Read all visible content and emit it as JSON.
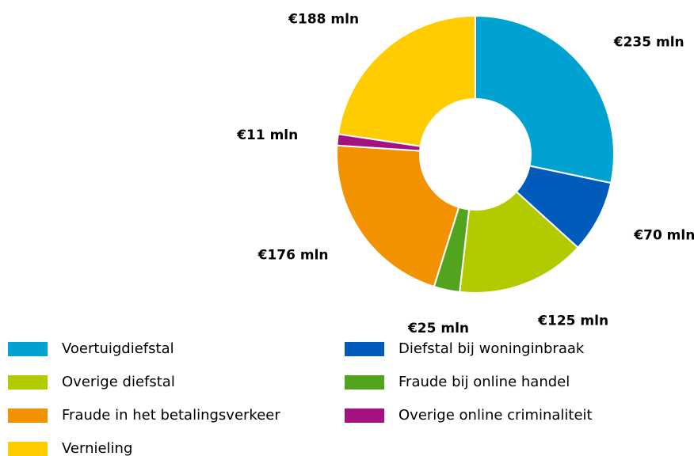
{
  "chart_data": {
    "type": "donut",
    "categories": [
      "Voertuigdiefstal",
      "Diefstal bij woninginbraak",
      "Overige diefstal",
      "Fraude bij online handel",
      "Fraude in het betalingsverkeer",
      "Overige online criminaliteit",
      "Vernieling"
    ],
    "values": [
      235,
      70,
      125,
      25,
      176,
      11,
      188
    ],
    "value_labels": [
      "€235 mln",
      "€70 mln",
      "€125 mln",
      "€25 mln",
      "€176 mln",
      "€11 mln",
      "€188 mln"
    ],
    "colors": [
      "#00a2d1",
      "#005bbb",
      "#b1cb00",
      "#52a31e",
      "#f39200",
      "#a4127f",
      "#ffcc00"
    ],
    "legend": "bottom"
  }
}
